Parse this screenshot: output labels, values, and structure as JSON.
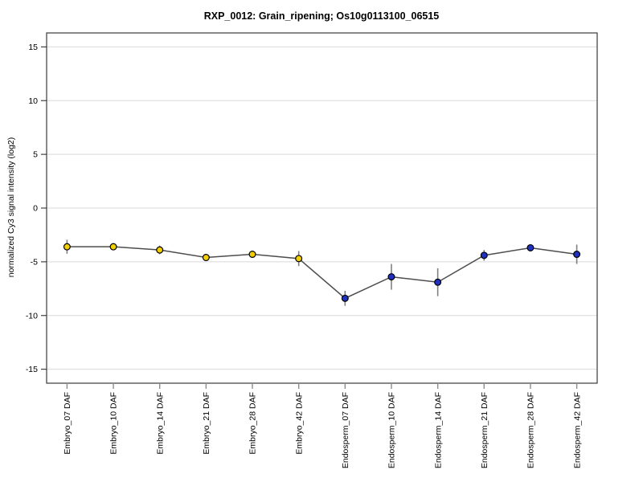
{
  "chart_data": {
    "type": "line",
    "title": "RXP_0012: Grain_ripening; Os10g0113100_06515",
    "xlabel": "",
    "ylabel": "normalized Cy3 signal intensity (log2)",
    "categories": [
      "Embryo_07 DAF",
      "Embryo_10 DAF",
      "Embryo_14 DAF",
      "Embryo_21 DAF",
      "Embryo_28 DAF",
      "Embryo_42 DAF",
      "Endosperm_07 DAF",
      "Endosperm_10 DAF",
      "Endosperm_14 DAF",
      "Endosperm_21 DAF",
      "Endosperm_28 DAF",
      "Endosperm_42 DAF"
    ],
    "series": [
      {
        "name": "normalized Cy3 signal intensity",
        "values": [
          -3.6,
          -3.6,
          -3.9,
          -4.6,
          -4.3,
          -4.7,
          -8.4,
          -6.4,
          -6.9,
          -4.4,
          -3.7,
          -4.3
        ],
        "errors": [
          0.65,
          0.25,
          0.4,
          0.15,
          0.15,
          0.7,
          0.7,
          1.2,
          1.3,
          0.5,
          0.15,
          0.9
        ]
      }
    ],
    "point_groups": [
      "Embryo",
      "Embryo",
      "Embryo",
      "Embryo",
      "Embryo",
      "Embryo",
      "Endosperm",
      "Endosperm",
      "Endosperm",
      "Endosperm",
      "Endosperm",
      "Endosperm"
    ],
    "marker_colors": {
      "Embryo": "#f2cf00",
      "Endosperm": "#2030c0"
    },
    "yticks": [
      -15,
      -10,
      -5,
      0,
      5,
      10,
      15
    ],
    "ylim": [
      -16.3,
      16.3
    ],
    "grid": true,
    "legend_position": "none"
  },
  "style": {
    "background": "#ffffff",
    "line_color": "#4d4d4d",
    "error_bar_color": "#808080",
    "grid_color": "#d9d9d9",
    "frame_color": "#3a3a3a",
    "tick_color": "#333333",
    "bottom_tick_color": "#8c8c8c",
    "marker_stroke": "#000000",
    "text_color": "#000000"
  }
}
